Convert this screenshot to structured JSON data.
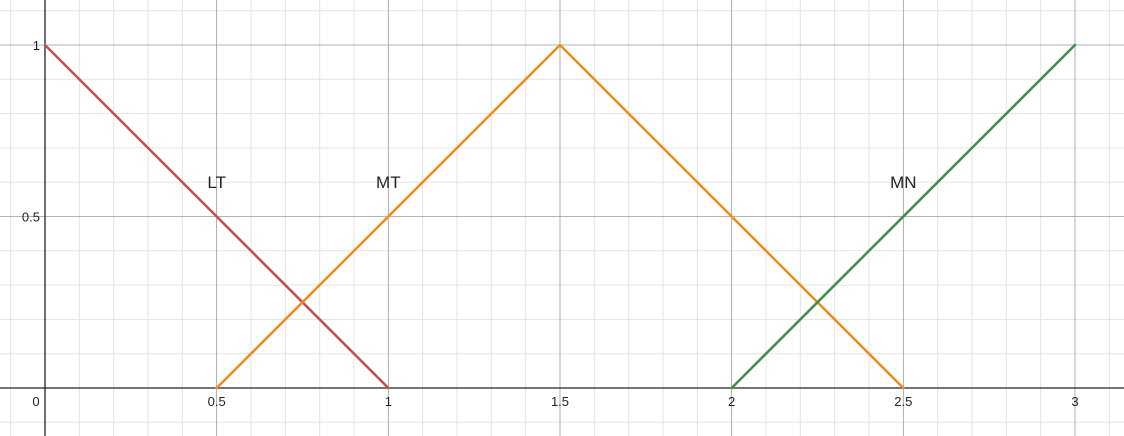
{
  "chart_data": {
    "type": "line",
    "title": "",
    "xlabel": "",
    "ylabel": "",
    "xlim": [
      0,
      3
    ],
    "ylim": [
      0,
      1
    ],
    "grid": true,
    "x_ticks": [
      {
        "value": 0,
        "label": "0"
      },
      {
        "value": 0.5,
        "label": "0.5"
      },
      {
        "value": 1,
        "label": "1"
      },
      {
        "value": 1.5,
        "label": "1.5"
      },
      {
        "value": 2,
        "label": "2"
      },
      {
        "value": 2.5,
        "label": "2.5"
      },
      {
        "value": 3,
        "label": "3"
      }
    ],
    "y_ticks": [
      {
        "value": 0.5,
        "label": "0.5"
      },
      {
        "value": 1,
        "label": "1"
      }
    ],
    "series": [
      {
        "name": "LT",
        "color": "#c0504d",
        "points": [
          [
            0,
            1
          ],
          [
            1,
            0
          ]
        ],
        "label_at": [
          0.5,
          0.6
        ]
      },
      {
        "name": "MT",
        "color": "#ef8a22",
        "points": [
          [
            0.5,
            0
          ],
          [
            1.5,
            1
          ],
          [
            2.5,
            0
          ]
        ],
        "label_at": [
          1,
          0.6
        ]
      },
      {
        "name": "MN",
        "color": "#3e8f4a",
        "points": [
          [
            2,
            0
          ],
          [
            3,
            1
          ]
        ],
        "label_at": [
          2.5,
          0.6
        ]
      }
    ]
  }
}
